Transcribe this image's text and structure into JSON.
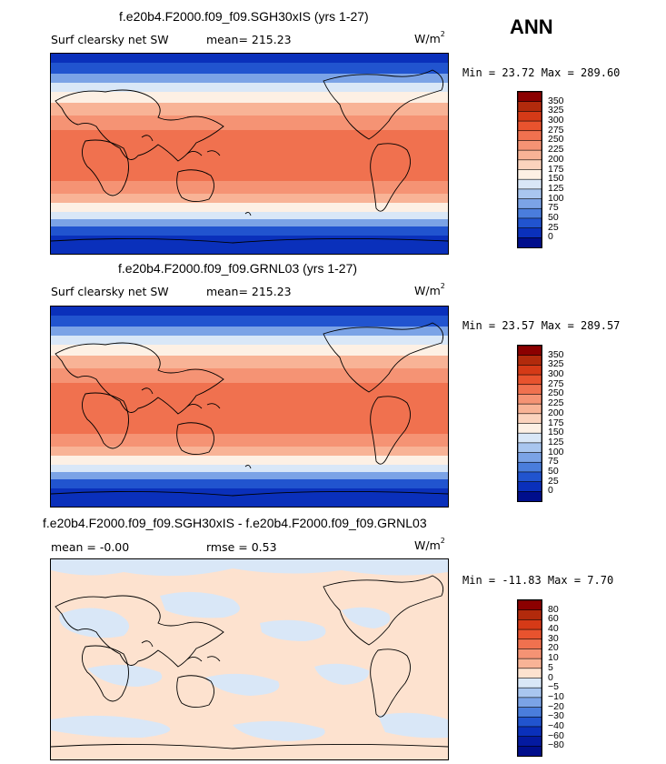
{
  "season": "ANN",
  "panels": [
    {
      "title": "f.e20b4.F2000.f09_f09.SGH30xIS (yrs 1-27)",
      "variable": "Surf clearsky net SW",
      "stat_label": "mean= 215.23",
      "units_base": "W/m",
      "units_exp": "2",
      "minmax": "Min =   23.72 Max =  289.60"
    },
    {
      "title": "f.e20b4.F2000.f09_f09.GRNL03 (yrs 1-27)",
      "variable": "Surf clearsky net SW",
      "stat_label": "mean= 215.23",
      "units_base": "W/m",
      "units_exp": "2",
      "minmax": "Min =   23.57 Max =  289.57"
    },
    {
      "title": "f.e20b4.F2000.f09_f09.SGH30xIS - f.e20b4.F2000.f09_f09.GRNL03",
      "mean_label": "mean =   -0.00",
      "rmse_label": "rmse =    0.53",
      "units_base": "W/m",
      "units_exp": "2",
      "minmax": "Min = -11.83 Max =    7.70"
    }
  ],
  "chart_data": [
    {
      "type": "heatmap",
      "title": "f.e20b4.F2000.f09_f09.SGH30xIS (yrs 1-27)",
      "field": "Surf clearsky net SW",
      "units": "W/m^2",
      "mean": 215.23,
      "min": 23.72,
      "max": 289.6,
      "colorbar_levels": [
        "350",
        "325",
        "300",
        "275",
        "250",
        "225",
        "200",
        "175",
        "150",
        "125",
        "100",
        "75",
        "50",
        "25",
        "0"
      ],
      "colorbar_colors": [
        "#8b0000",
        "#b22a0c",
        "#d53a17",
        "#e8532e",
        "#f0714f",
        "#f59374",
        "#f8b396",
        "#fbd3bd",
        "#fdf0e4",
        "#d9e7f7",
        "#a9c6ef",
        "#7ba3e6",
        "#4a7ddc",
        "#2154cf",
        "#0a30bb",
        "#000e8c"
      ]
    },
    {
      "type": "heatmap",
      "title": "f.e20b4.F2000.f09_f09.GRNL03 (yrs 1-27)",
      "field": "Surf clearsky net SW",
      "units": "W/m^2",
      "mean": 215.23,
      "min": 23.57,
      "max": 289.57,
      "colorbar_levels": [
        "350",
        "325",
        "300",
        "275",
        "250",
        "225",
        "200",
        "175",
        "150",
        "125",
        "100",
        "75",
        "50",
        "25",
        "0"
      ],
      "colorbar_colors": [
        "#8b0000",
        "#b22a0c",
        "#d53a17",
        "#e8532e",
        "#f0714f",
        "#f59374",
        "#f8b396",
        "#fbd3bd",
        "#fdf0e4",
        "#d9e7f7",
        "#a9c6ef",
        "#7ba3e6",
        "#4a7ddc",
        "#2154cf",
        "#0a30bb",
        "#000e8c"
      ]
    },
    {
      "type": "heatmap",
      "title": "f.e20b4.F2000.f09_f09.SGH30xIS - f.e20b4.F2000.f09_f09.GRNL03",
      "units": "W/m^2",
      "mean": -0.0,
      "rmse": 0.53,
      "min": -11.83,
      "max": 7.7,
      "colorbar_levels": [
        "80",
        "60",
        "40",
        "30",
        "20",
        "10",
        "5",
        "0",
        "−5",
        "−10",
        "−20",
        "−30",
        "−40",
        "−60",
        "−80"
      ],
      "colorbar_colors": [
        "#8b0000",
        "#b22a0c",
        "#d53a17",
        "#e8532e",
        "#f0714f",
        "#f59374",
        "#f8b396",
        "#fde2cf",
        "#d9e7f7",
        "#a9c6ef",
        "#7ba3e6",
        "#4a7ddc",
        "#2154cf",
        "#0a30bb",
        "#041aa0",
        "#000e8c"
      ]
    }
  ]
}
